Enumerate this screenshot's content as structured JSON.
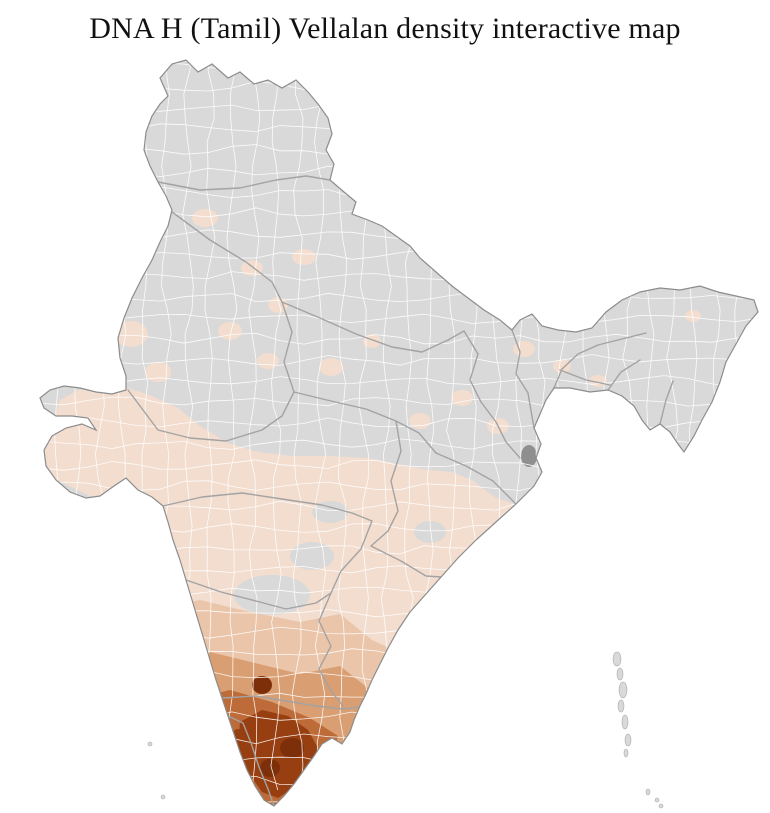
{
  "page": {
    "title": "DNA H (Tamil) Vellalan density interactive map"
  },
  "map": {
    "name": "India district-level density choropleth",
    "palette": {
      "background": "#ffffff",
      "no_data": "#d9d9d9",
      "density_1": "#f2ddcf",
      "density_2": "#eac5a9",
      "density_3": "#d99e72",
      "density_4": "#bd6b38",
      "density_5": "#983f12",
      "density_6": "#7c2f08",
      "metro_district": "#8f8f8f",
      "district_border": "#ffffff",
      "state_border": "#a3a3a3",
      "country_outline": "#8c8c8c"
    }
  }
}
